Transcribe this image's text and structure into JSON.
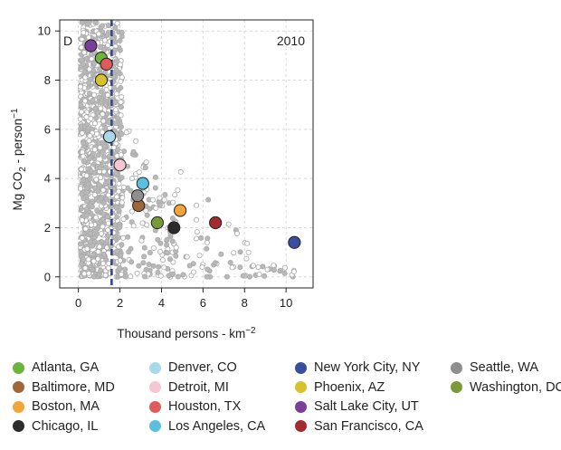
{
  "chart_data": {
    "type": "scatter",
    "panel_label": "D",
    "year_label": "2010",
    "xlabel": "Thousand persons - km",
    "xlabel_sup": "−2",
    "ylabel_main": "Mg CO",
    "ylabel_sub": "2",
    "ylabel_rest": " - person",
    "ylabel_sup": "−1",
    "xlim": [
      -0.9,
      11.3
    ],
    "ylim": [
      -0.45,
      10.45
    ],
    "xticks": [
      0,
      2,
      4,
      6,
      8,
      10
    ],
    "yticks": [
      0,
      2,
      4,
      6,
      8,
      10
    ],
    "grid": true,
    "reference_line_x": 1.6,
    "cities": [
      {
        "name": "Atlanta, GA",
        "color": "#6db33f",
        "x": 1.1,
        "y": 8.9
      },
      {
        "name": "Baltimore, MD",
        "color": "#a0663a",
        "x": 2.9,
        "y": 2.9
      },
      {
        "name": "Boston, MA",
        "color": "#f0a43a",
        "x": 4.9,
        "y": 2.7
      },
      {
        "name": "Chicago, IL",
        "color": "#2b2b2b",
        "x": 4.6,
        "y": 2.0
      },
      {
        "name": "Denver, CO",
        "color": "#a8d8ea",
        "x": 1.5,
        "y": 5.7
      },
      {
        "name": "Detroit, MI",
        "color": "#f6c6d4",
        "x": 2.0,
        "y": 4.55
      },
      {
        "name": "Houston, TX",
        "color": "#e05a5a",
        "x": 1.35,
        "y": 8.65
      },
      {
        "name": "Los Angeles, CA",
        "color": "#5bc0de",
        "x": 3.1,
        "y": 3.8
      },
      {
        "name": "New York City, NY",
        "color": "#3a4ea0",
        "x": 10.4,
        "y": 1.4
      },
      {
        "name": "Phoenix, AZ",
        "color": "#d9c12e",
        "x": 1.1,
        "y": 8.0
      },
      {
        "name": "Salt Lake City, UT",
        "color": "#7b3f99",
        "x": 0.6,
        "y": 9.4
      },
      {
        "name": "San Francisco, CA",
        "color": "#a32a2f",
        "x": 6.6,
        "y": 2.2
      },
      {
        "name": "Seattle, WA",
        "color": "#8e8e8e",
        "x": 2.85,
        "y": 3.3
      },
      {
        "name": "Washington, DC",
        "color": "#7a9a3a",
        "x": 3.8,
        "y": 2.2
      }
    ]
  }
}
